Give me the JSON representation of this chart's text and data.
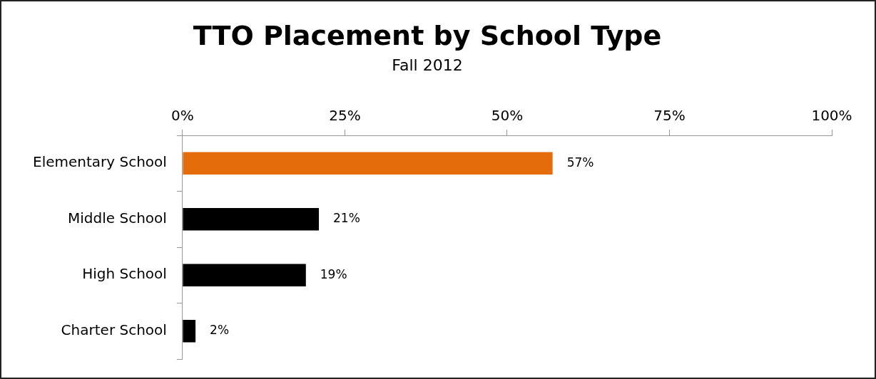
{
  "chart_data": {
    "type": "bar",
    "orientation": "horizontal",
    "title": "TTO Placement by School Type",
    "subtitle": "Fall 2012",
    "categories": [
      "Elementary School",
      "Middle School",
      "High School",
      "Charter School"
    ],
    "values": [
      57,
      21,
      19,
      2
    ],
    "colors": [
      "#e46c0a",
      "#000000",
      "#000000",
      "#000000"
    ],
    "value_labels": [
      "57%",
      "21%",
      "19%",
      "2%"
    ],
    "xlim": [
      0,
      100
    ],
    "xticks": [
      {
        "value": 0,
        "label": "0%"
      },
      {
        "value": 25,
        "label": "25%"
      },
      {
        "value": 50,
        "label": "50%"
      },
      {
        "value": 75,
        "label": "75%"
      },
      {
        "value": 100,
        "label": "100%"
      }
    ],
    "grid": false,
    "legend": false
  }
}
